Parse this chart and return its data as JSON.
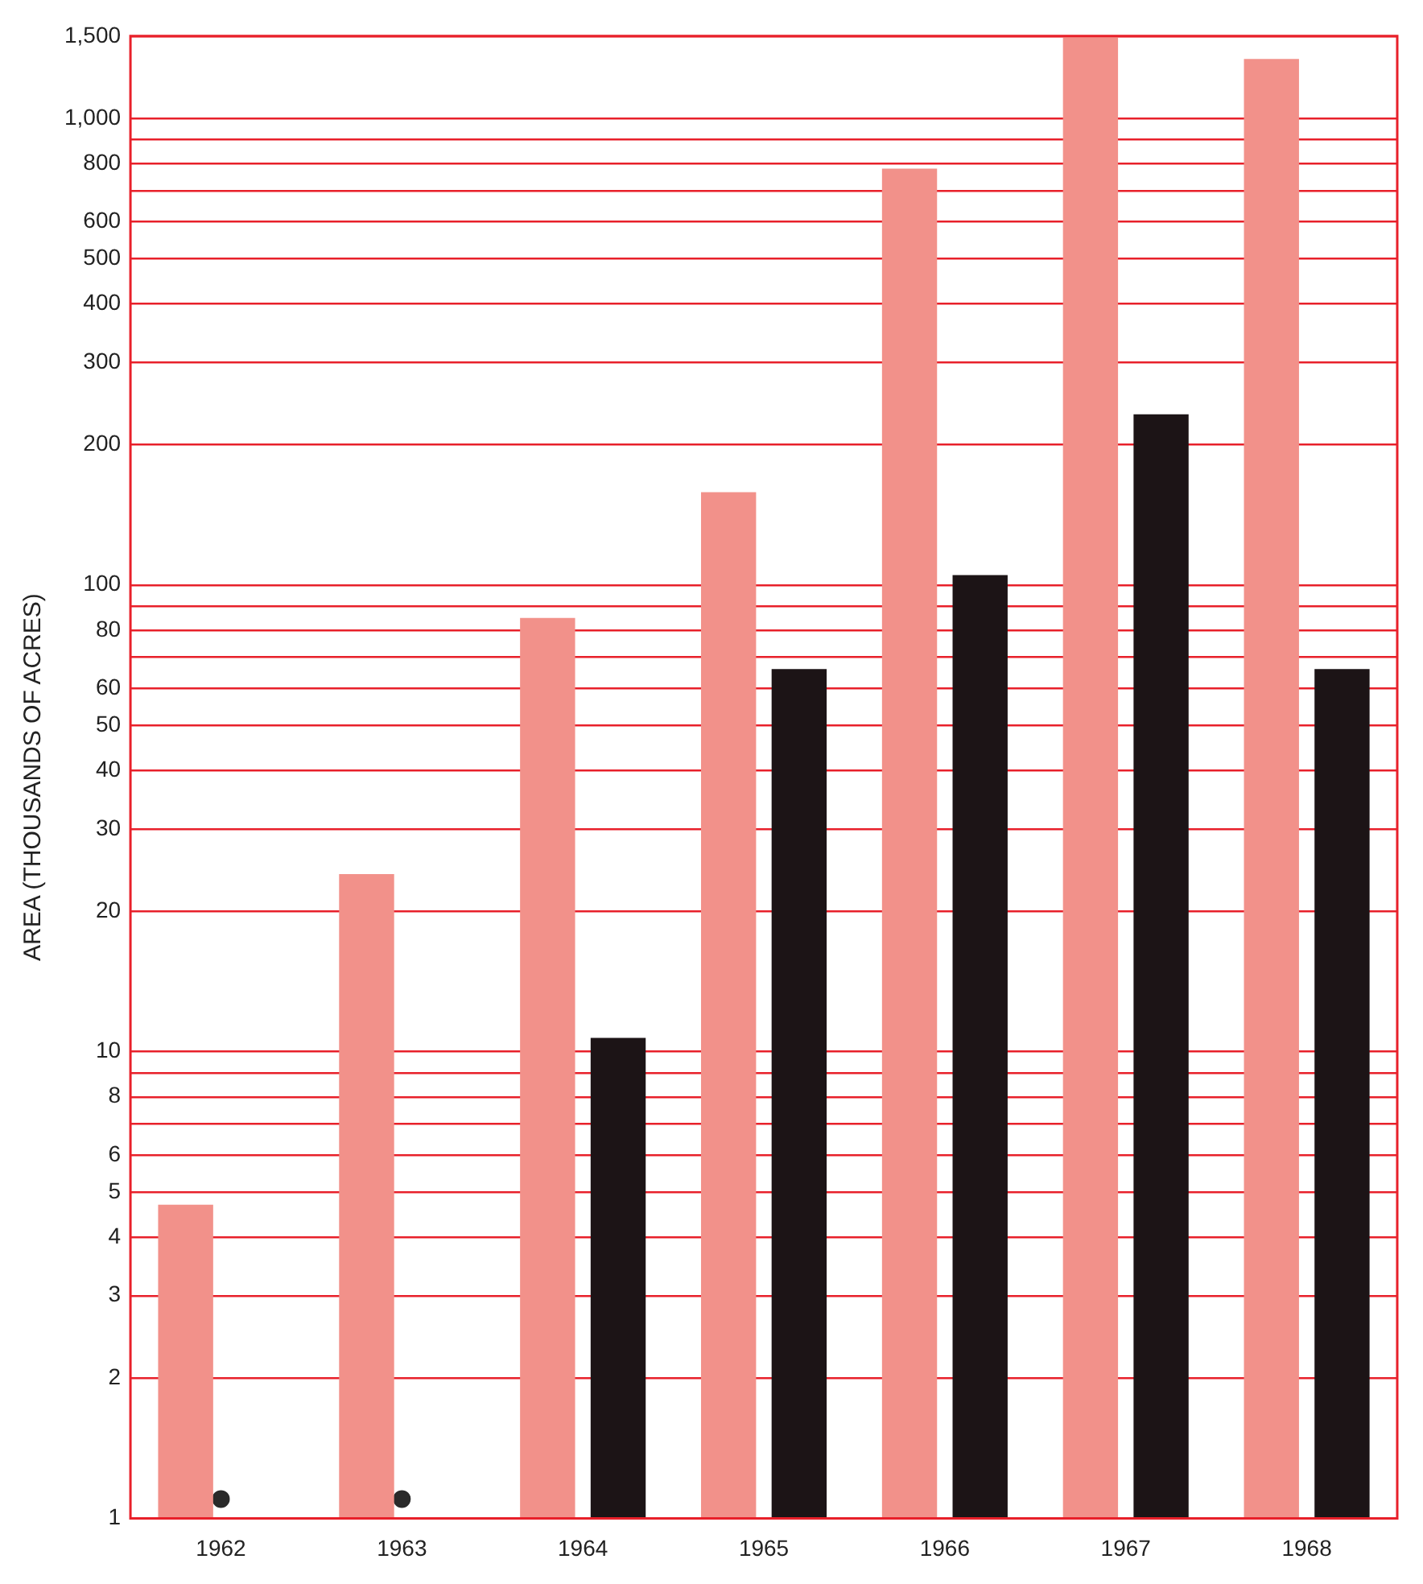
{
  "chart_data": {
    "type": "bar",
    "ylabel": "AREA (THOUSANDS OF ACRES)",
    "categories": [
      "1962",
      "1963",
      "1964",
      "1965",
      "1966",
      "1967",
      "1968"
    ],
    "series": [
      {
        "color": "#f2918a",
        "values": [
          4.7,
          24,
          85,
          158,
          780,
          1500,
          1340
        ]
      },
      {
        "color": "#1c1416",
        "values": [
          null,
          null,
          10.7,
          66,
          105,
          232,
          66
        ]
      },
      {
        "type": "scatter",
        "color": "#2a2a2a",
        "values": [
          1.1,
          1.1,
          null,
          null,
          null,
          null,
          null
        ]
      }
    ],
    "marker": "circle",
    "log": true,
    "ylim": [
      1,
      1500
    ],
    "yticks": [
      1,
      2,
      3,
      4,
      5,
      6,
      {
        "value": 7,
        "label": null
      },
      8,
      {
        "value": 9,
        "label": null
      },
      10,
      20,
      30,
      40,
      50,
      60,
      {
        "value": 70,
        "label": null
      },
      80,
      {
        "value": 90,
        "label": null
      },
      100,
      200,
      300,
      400,
      500,
      600,
      {
        "value": 700,
        "label": null
      },
      800,
      {
        "value": 900,
        "label": null
      },
      {
        "value": 1000,
        "label": "1,000"
      },
      {
        "value": 1500,
        "label": "1,500"
      }
    ],
    "grid": "y",
    "legend": false
  }
}
